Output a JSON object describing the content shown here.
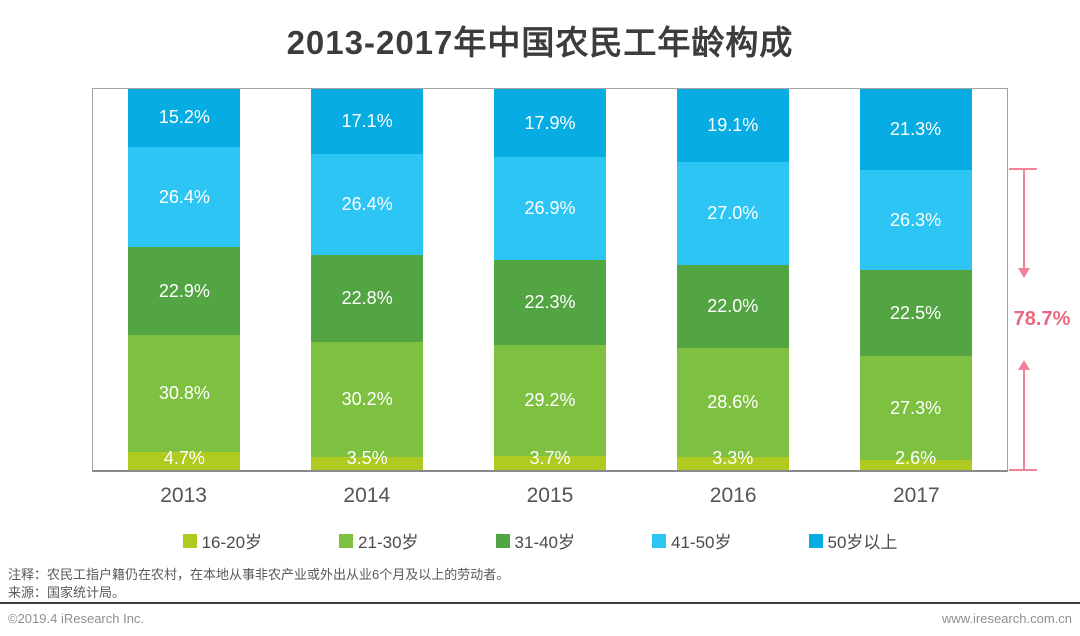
{
  "title": "2013-2017年中国农民工年龄构成",
  "chart_data": {
    "type": "bar",
    "variant": "stacked-100-percent",
    "title": "2013-2017年中国农民工年龄构成",
    "categories": [
      "2013",
      "2014",
      "2015",
      "2016",
      "2017"
    ],
    "series": [
      {
        "name": "16-20岁",
        "color": "#afca21",
        "values": [
          4.7,
          3.5,
          3.7,
          3.3,
          2.6
        ]
      },
      {
        "name": "21-30岁",
        "color": "#7ec141",
        "values": [
          30.8,
          30.2,
          29.2,
          28.6,
          27.3
        ]
      },
      {
        "name": "31-40岁",
        "color": "#53a443",
        "values": [
          22.9,
          22.8,
          22.3,
          22.0,
          22.5
        ]
      },
      {
        "name": "41-50岁",
        "color": "#2cc5f4",
        "values": [
          26.4,
          26.4,
          26.9,
          27.0,
          26.3
        ]
      },
      {
        "name": "50岁以上",
        "color": "#06ace2",
        "values": [
          15.2,
          17.1,
          17.9,
          19.1,
          21.3
        ]
      }
    ],
    "value_suffix": "%",
    "ylim": [
      0,
      100
    ],
    "grid": false,
    "legend_position": "bottom",
    "annotation": {
      "label": "78.7%",
      "color": "#ee7b8d",
      "target_category": "2017",
      "span_percent": 78.7
    }
  },
  "notes": {
    "line1": "注释：农民工指户籍仍在农村，在本地从事非农产业或外出从业6个月及以上的劳动者。",
    "line2": "来源：国家统计局。"
  },
  "footer": {
    "left": "©2019.4 iResearch Inc.",
    "right": "www.iresearch.com.cn"
  }
}
